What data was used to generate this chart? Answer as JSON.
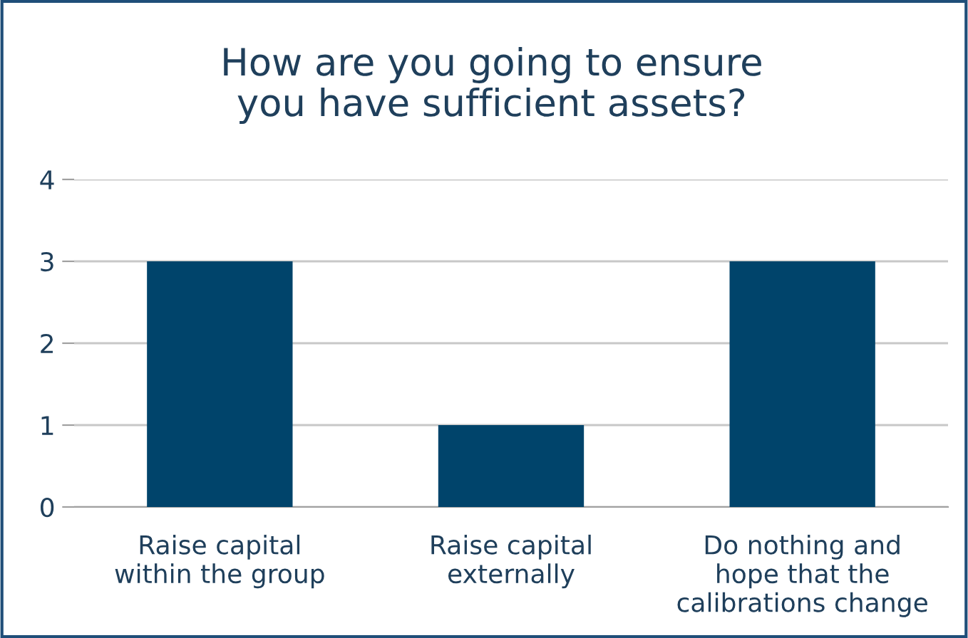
{
  "chart_data": {
    "type": "bar",
    "title": "How are you going to ensure\nyou have sufficient assets?",
    "categories": [
      "Raise capital\nwithin the group",
      "Raise capital\nexternally",
      "Do nothing and\nhope that the\ncalibrations change"
    ],
    "values": [
      3,
      1,
      3
    ],
    "color": "#00446b",
    "ylim": [
      0,
      4
    ],
    "yticks": [
      0,
      1,
      2,
      3,
      4
    ],
    "grid": "y"
  }
}
